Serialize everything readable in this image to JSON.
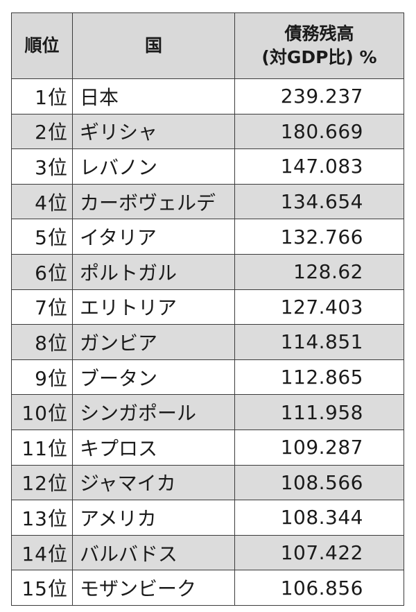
{
  "header": {
    "rank": "順位",
    "country": "国",
    "value_line1": "債務残高",
    "value_line2": "(対GDP比) %"
  },
  "rows": [
    {
      "rank": "1位",
      "country": "日本",
      "value": "239.237"
    },
    {
      "rank": "2位",
      "country": "ギリシャ",
      "value": "180.669"
    },
    {
      "rank": "3位",
      "country": "レバノン",
      "value": "147.083"
    },
    {
      "rank": "4位",
      "country": "カーボヴェルデ",
      "value": "134.654"
    },
    {
      "rank": "5位",
      "country": "イタリア",
      "value": "132.766"
    },
    {
      "rank": "6位",
      "country": "ポルトガル",
      "value": "128.62"
    },
    {
      "rank": "7位",
      "country": "エリトリア",
      "value": "127.403"
    },
    {
      "rank": "8位",
      "country": "ガンビア",
      "value": "114.851"
    },
    {
      "rank": "9位",
      "country": "ブータン",
      "value": "112.865"
    },
    {
      "rank": "10位",
      "country": "シンガポール",
      "value": "111.958"
    },
    {
      "rank": "11位",
      "country": "キプロス",
      "value": "109.287"
    },
    {
      "rank": "12位",
      "country": "ジャマイカ",
      "value": "108.566"
    },
    {
      "rank": "13位",
      "country": "アメリカ",
      "value": "108.344"
    },
    {
      "rank": "14位",
      "country": "バルバドス",
      "value": "107.422"
    },
    {
      "rank": "15位",
      "country": "モザンビーク",
      "value": "106.856"
    }
  ],
  "colors": {
    "header_bg": "#d9d9d9",
    "shaded_row_bg": "#dcdcdc",
    "plain_row_bg": "#ffffff",
    "border": "#3a3a3a"
  }
}
